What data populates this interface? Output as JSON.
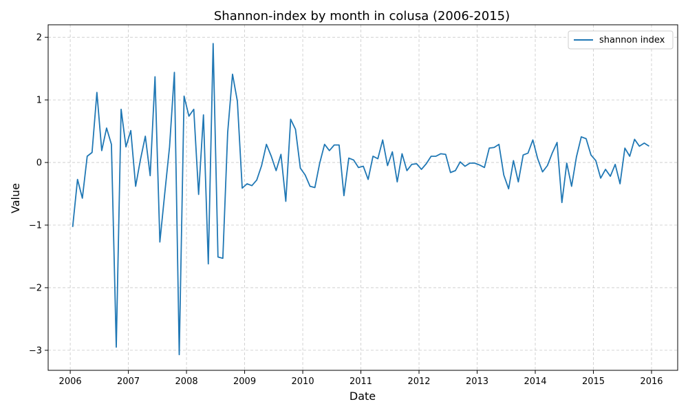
{
  "chart_data": {
    "type": "line",
    "title": "Shannon-index by month in colusa (2006-2015)",
    "xlabel": "Date",
    "ylabel": "Value",
    "xlim": [
      2005.62,
      2016.45
    ],
    "ylim": [
      -3.32,
      2.2
    ],
    "xticks": [
      2006,
      2007,
      2008,
      2009,
      2010,
      2011,
      2012,
      2013,
      2014,
      2015,
      2016
    ],
    "xtick_labels": [
      "2006",
      "2007",
      "2008",
      "2009",
      "2010",
      "2011",
      "2012",
      "2013",
      "2014",
      "2015",
      "2016"
    ],
    "yticks": [
      -3,
      -2,
      -1,
      0,
      1,
      2
    ],
    "ytick_labels": [
      "−3",
      "−2",
      "−1",
      "0",
      "1",
      "2"
    ],
    "grid": true,
    "legend_position": "top-right",
    "line_color": "#1f77b4",
    "series": [
      {
        "name": "shannon index",
        "x_start": "2006-01",
        "x_step": "1 month",
        "values": [
          -1.03,
          -0.27,
          -0.57,
          0.1,
          0.16,
          1.12,
          0.19,
          0.55,
          0.29,
          -2.95,
          0.85,
          0.25,
          0.51,
          -0.38,
          0.05,
          0.42,
          -0.21,
          1.37,
          -1.27,
          -0.5,
          0.25,
          1.44,
          -3.07,
          1.06,
          0.74,
          0.85,
          -0.51,
          0.76,
          -1.62,
          1.9,
          -1.51,
          -1.53,
          0.48,
          1.41,
          0.98,
          -0.41,
          -0.34,
          -0.37,
          -0.28,
          -0.05,
          0.29,
          0.1,
          -0.13,
          0.13,
          -0.62,
          0.69,
          0.53,
          -0.09,
          -0.2,
          -0.38,
          -0.4,
          -0.01,
          0.29,
          0.19,
          0.28,
          0.28,
          -0.53,
          0.07,
          0.04,
          -0.08,
          -0.06,
          -0.27,
          0.1,
          0.06,
          0.36,
          -0.05,
          0.17,
          -0.31,
          0.14,
          -0.13,
          -0.03,
          -0.02,
          -0.11,
          -0.02,
          0.1,
          0.1,
          0.14,
          0.13,
          -0.16,
          -0.13,
          0.01,
          -0.06,
          -0.01,
          -0.01,
          -0.04,
          -0.08,
          0.23,
          0.24,
          0.29,
          -0.2,
          -0.42,
          0.03,
          -0.31,
          0.12,
          0.15,
          0.36,
          0.06,
          -0.15,
          -0.05,
          0.15,
          0.32,
          -0.64,
          -0.01,
          -0.38,
          0.09,
          0.41,
          0.38,
          0.12,
          0.03,
          -0.25,
          -0.11,
          -0.22,
          -0.03,
          -0.34,
          0.23,
          0.1,
          0.37,
          0.26,
          0.31,
          0.26
        ]
      }
    ]
  }
}
